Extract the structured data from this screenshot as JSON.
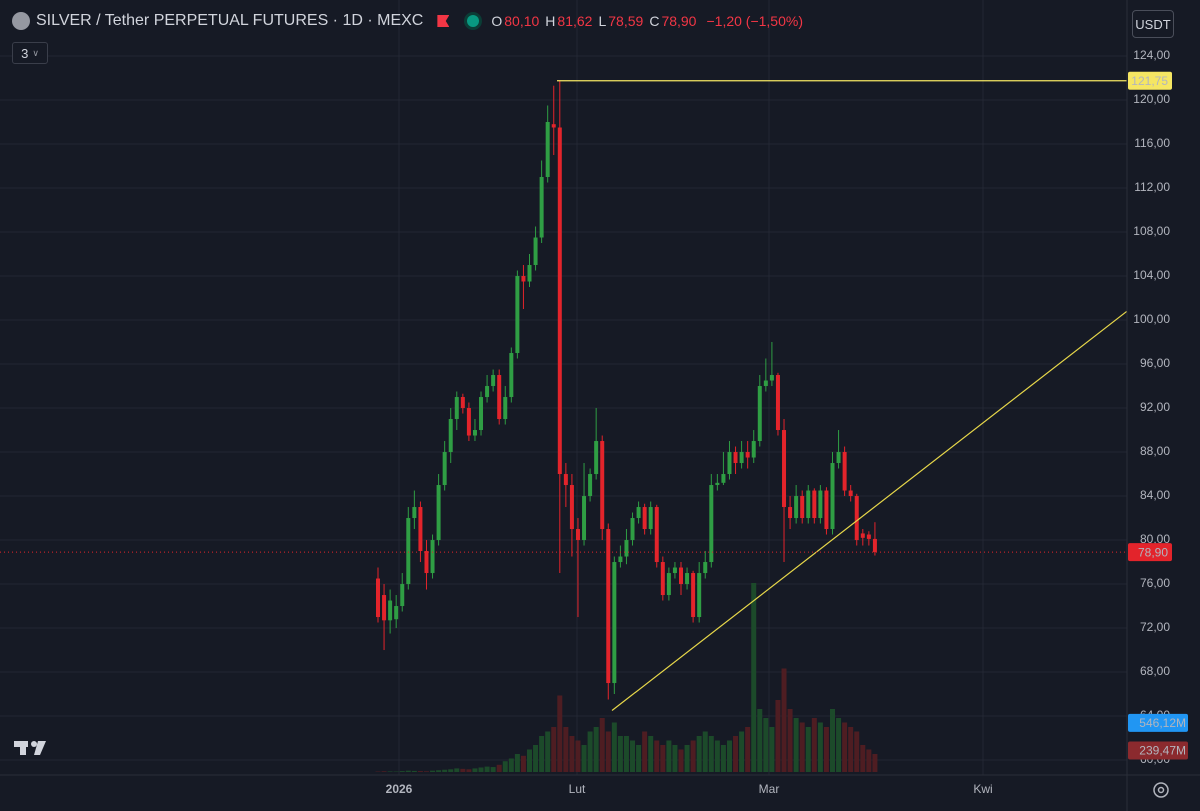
{
  "header": {
    "title": "SILVER / Tether PERPETUAL FUTURES · 1D · MEXC",
    "ohlc": [
      {
        "key": "O",
        "text": "80,10"
      },
      {
        "key": "H",
        "text": "81,62"
      },
      {
        "key": "L",
        "text": "78,59"
      },
      {
        "key": "C",
        "text": "78,90"
      }
    ],
    "change": "−1,20 (−1,50%)",
    "badge": "3",
    "currency": "USDT"
  },
  "chart_data": {
    "type": "candlestick",
    "open": [
      76.5,
      75,
      72.7,
      72.8,
      74,
      76,
      82,
      83,
      79,
      77,
      80,
      85,
      88,
      91,
      93,
      92,
      89.5,
      90,
      93,
      94,
      95,
      91,
      93,
      97,
      104,
      103.5,
      105,
      107.5,
      113,
      117.8,
      117.5,
      86,
      85,
      81,
      80,
      84,
      86,
      89,
      81,
      67,
      78,
      78.5,
      80,
      82,
      83,
      81,
      83,
      78,
      75,
      77,
      77.5,
      76,
      77,
      73,
      77,
      78,
      85,
      85.2,
      86,
      88,
      87,
      88,
      87.5,
      89,
      94,
      94.5,
      95,
      90,
      83,
      82,
      84,
      82,
      84.5,
      82,
      84.5,
      81,
      87,
      88,
      84.5,
      84,
      80.6,
      80.5,
      80.1
    ],
    "high": [
      77.5,
      76,
      75.5,
      75,
      77,
      83,
      84.5,
      83.5,
      80,
      80.5,
      86,
      89,
      92,
      93.5,
      93.3,
      92.5,
      91,
      93.5,
      95,
      95.5,
      95.5,
      94,
      97.5,
      104.5,
      105,
      106,
      108.5,
      114.5,
      119.5,
      121.3,
      121.75,
      87,
      86,
      82,
      87,
      86.5,
      92,
      89.5,
      81.5,
      78.5,
      79.5,
      81,
      82.5,
      83.5,
      83.3,
      83.5,
      83.2,
      78.5,
      77.5,
      78,
      78,
      77.5,
      77.2,
      78,
      79,
      86,
      86,
      88,
      89,
      88.5,
      89,
      89,
      90,
      95,
      96.5,
      98,
      95.2,
      91,
      84,
      85,
      84.5,
      85,
      84.7,
      85,
      84.8,
      88,
      90,
      88.5,
      85,
      84.2,
      81,
      80.8,
      81.62
    ],
    "low": [
      72.5,
      70,
      71.5,
      72,
      73.5,
      75.5,
      81,
      78,
      75.5,
      76.5,
      79.5,
      84.5,
      87,
      90,
      91.5,
      89,
      89,
      89.5,
      92.5,
      93.5,
      90.5,
      90.5,
      92.5,
      96.5,
      101,
      103,
      104.5,
      107,
      112.5,
      115,
      77,
      83,
      78.5,
      73,
      79.5,
      83.5,
      85.5,
      80,
      65.5,
      66,
      77.5,
      77.8,
      79.5,
      81.5,
      80.5,
      80.5,
      77.5,
      74.5,
      74.5,
      76.5,
      75,
      75.5,
      72.5,
      72.5,
      76.5,
      77.5,
      84.5,
      85,
      85.5,
      86,
      86.5,
      86.5,
      87,
      88.5,
      93.5,
      94,
      89.5,
      78,
      81,
      81.5,
      81.5,
      81.5,
      81.5,
      81.5,
      80.5,
      80.5,
      86.5,
      84,
      83.5,
      79.5,
      79.5,
      79.5,
      78.59
    ],
    "close": [
      73,
      72.7,
      74.5,
      74,
      76,
      82,
      83,
      79,
      77,
      80,
      85,
      88,
      91,
      93,
      92,
      89.5,
      90,
      93,
      94,
      95,
      91,
      93,
      97,
      104,
      103.5,
      105,
      107.5,
      113,
      118,
      117.5,
      86,
      85,
      81,
      80,
      84,
      86,
      89,
      81,
      67,
      78,
      78.5,
      80,
      82,
      83,
      81,
      83,
      78,
      75,
      77,
      77.5,
      76,
      77,
      73,
      77,
      78,
      85,
      85.2,
      86,
      88,
      87,
      88,
      87.5,
      89,
      94,
      94.5,
      95,
      90,
      83,
      82,
      84,
      82,
      84.5,
      82,
      84.5,
      81,
      87,
      88,
      84.5,
      84,
      80,
      80.2,
      80.1,
      78.9
    ],
    "volume": [
      5,
      8,
      6,
      5,
      10,
      15,
      12,
      10,
      8,
      15,
      20,
      25,
      30,
      40,
      35,
      30,
      40,
      50,
      60,
      55,
      80,
      120,
      150,
      200,
      180,
      250,
      300,
      400,
      450,
      500,
      850,
      500,
      400,
      350,
      300,
      450,
      500,
      600,
      450,
      550,
      400,
      400,
      350,
      300,
      450,
      400,
      350,
      300,
      350,
      300,
      250,
      300,
      350,
      400,
      450,
      400,
      350,
      300,
      350,
      400,
      450,
      500,
      2100,
      700,
      600,
      500,
      800,
      1150,
      700,
      600,
      550,
      500,
      600,
      550,
      500,
      700,
      600,
      550,
      500,
      450,
      300,
      250,
      200
    ],
    "volume_labels": [
      {
        "value": 546.12,
        "label": "546,12M",
        "color": "#2196f3"
      },
      {
        "value": 239.47,
        "label": "239,47M",
        "color": "#8b2a2e"
      }
    ],
    "up_color": "#2f9e44",
    "down_color": "#e3242b",
    "up_volume_color": "#1c4a2a",
    "down_volume_color": "#4e1d22",
    "ylim": [
      58.64,
      129.09
    ],
    "yticks": [
      {
        "value": 124,
        "label": "124,00"
      },
      {
        "value": 120,
        "label": "120,00"
      },
      {
        "value": 116,
        "label": "116,00"
      },
      {
        "value": 112,
        "label": "112,00"
      },
      {
        "value": 108,
        "label": "108,00"
      },
      {
        "value": 104,
        "label": "104,00"
      },
      {
        "value": 100,
        "label": "100,00"
      },
      {
        "value": 96,
        "label": "96,00"
      },
      {
        "value": 92,
        "label": "92,00"
      },
      {
        "value": 88,
        "label": "88,00"
      },
      {
        "value": 84,
        "label": "84,00"
      },
      {
        "value": 80,
        "label": "80,00"
      },
      {
        "value": 76,
        "label": "76,00"
      },
      {
        "value": 72,
        "label": "72,00"
      },
      {
        "value": 68,
        "label": "68,00"
      },
      {
        "value": 64,
        "label": "64,00"
      },
      {
        "value": 60,
        "label": "60,00"
      }
    ],
    "x_labels": [
      "2026",
      "Lut",
      "Mar",
      "Kwi"
    ],
    "hline": {
      "value": 121.75,
      "label": "121,75",
      "color": "#f5e663"
    },
    "last_price": {
      "value": 78.9,
      "label": "78,90",
      "color": "#e3242b"
    },
    "trendline": {
      "values": [
        64.5,
        100.8
      ],
      "color": "#e8d84a"
    },
    "grid": true
  }
}
